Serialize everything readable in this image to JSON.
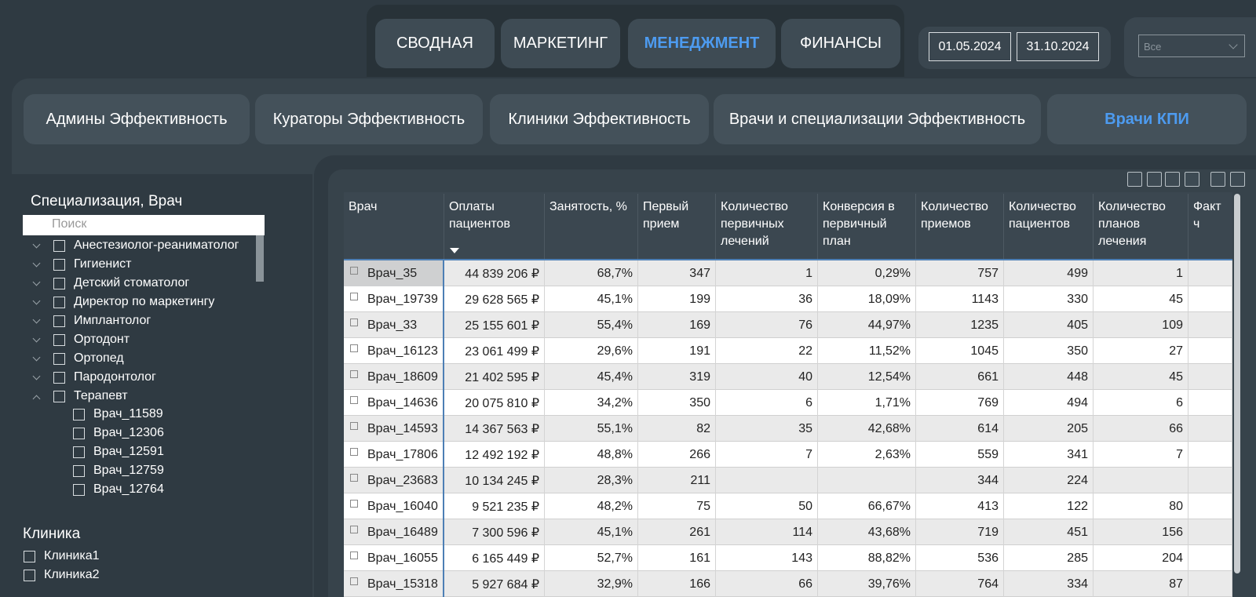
{
  "nav_tabs": [
    "СВОДНАЯ",
    "МАРКЕТИНГ",
    "МЕНЕДЖМЕНТ",
    "ФИНАНСЫ"
  ],
  "nav_active": 2,
  "date_range": [
    "01.05.2024",
    "31.10.2024"
  ],
  "dropdown": "Все",
  "sub_tabs": [
    "Админы Эффективность",
    "Кураторы Эффективность",
    "Клиники Эффективность",
    "Врачи и специализации Эффективность",
    "Врачи КПИ"
  ],
  "sub_active": 4,
  "doctor_filter": {
    "title": "Специализация, Врач",
    "search_placeholder": "Поиск",
    "items": [
      {
        "label": "Анестезиолог-реаниматолог"
      },
      {
        "label": "Гигиенист"
      },
      {
        "label": "Детский стоматолог"
      },
      {
        "label": "Директор по маркетингу"
      },
      {
        "label": "Имплантолог"
      },
      {
        "label": "Ортодонт"
      },
      {
        "label": "Ортопед"
      },
      {
        "label": "Пародонтолог"
      },
      {
        "label": "Терапевт",
        "children": [
          "Врач_11589",
          "Врач_12306",
          "Врач_12591",
          "Врач_12759",
          "Врач_12764"
        ]
      }
    ]
  },
  "clinic_filter": {
    "title": "Клиника",
    "items": [
      "Клиника1",
      "Клиника2"
    ]
  },
  "table": {
    "columns": [
      "Врач",
      "Оплаты пациентов",
      "Занятость, %",
      "Первый прием",
      "Количество первичных лечений",
      "Конверсия в первичный план",
      "Количество приемов",
      "Количество пациентов",
      "Количество планов лечения",
      "Факт ч"
    ],
    "sort_column": 1,
    "rows": [
      [
        "Врач_35",
        "44 839 206 ₽",
        "68,7%",
        "347",
        "1",
        "0,29%",
        "757",
        "499",
        "1",
        null
      ],
      [
        "Врач_19739",
        "29 628 565 ₽",
        "45,1%",
        "199",
        "36",
        "18,09%",
        "1143",
        "330",
        "45",
        null
      ],
      [
        "Врач_33",
        "25 155 601 ₽",
        "55,4%",
        "169",
        "76",
        "44,97%",
        "1235",
        "405",
        "109",
        null
      ],
      [
        "Врач_16123",
        "23 061 499 ₽",
        "29,6%",
        "191",
        "22",
        "11,52%",
        "1045",
        "350",
        "27",
        null
      ],
      [
        "Врач_18609",
        "21 402 595 ₽",
        "45,4%",
        "319",
        "40",
        "12,54%",
        "661",
        "448",
        "45",
        null
      ],
      [
        "Врач_14636",
        "20 075 810 ₽",
        "34,2%",
        "350",
        "6",
        "1,71%",
        "769",
        "494",
        "6",
        null
      ],
      [
        "Врач_14593",
        "14 367 563 ₽",
        "55,1%",
        "82",
        "35",
        "42,68%",
        "614",
        "205",
        "66",
        null
      ],
      [
        "Врач_17806",
        "12 492 192 ₽",
        "48,8%",
        "266",
        "7",
        "2,63%",
        "559",
        "341",
        "7",
        null
      ],
      [
        "Врач_23683",
        "10 134 245 ₽",
        "28,3%",
        "211",
        null,
        null,
        "344",
        "224",
        null,
        null
      ],
      [
        "Врач_16040",
        "9 521 235 ₽",
        "48,2%",
        "75",
        "50",
        "66,67%",
        "413",
        "122",
        "80",
        null
      ],
      [
        "Врач_16489",
        "7 300 596 ₽",
        "45,1%",
        "261",
        "114",
        "43,68%",
        "719",
        "451",
        "156",
        null
      ],
      [
        "Врач_16055",
        "6 165 449 ₽",
        "52,7%",
        "161",
        "143",
        "88,82%",
        "536",
        "285",
        "204",
        null
      ],
      [
        "Врач_15318",
        "5 927 684 ₽",
        "32,9%",
        "166",
        "66",
        "39,76%",
        "764",
        "334",
        "87",
        null
      ]
    ]
  }
}
